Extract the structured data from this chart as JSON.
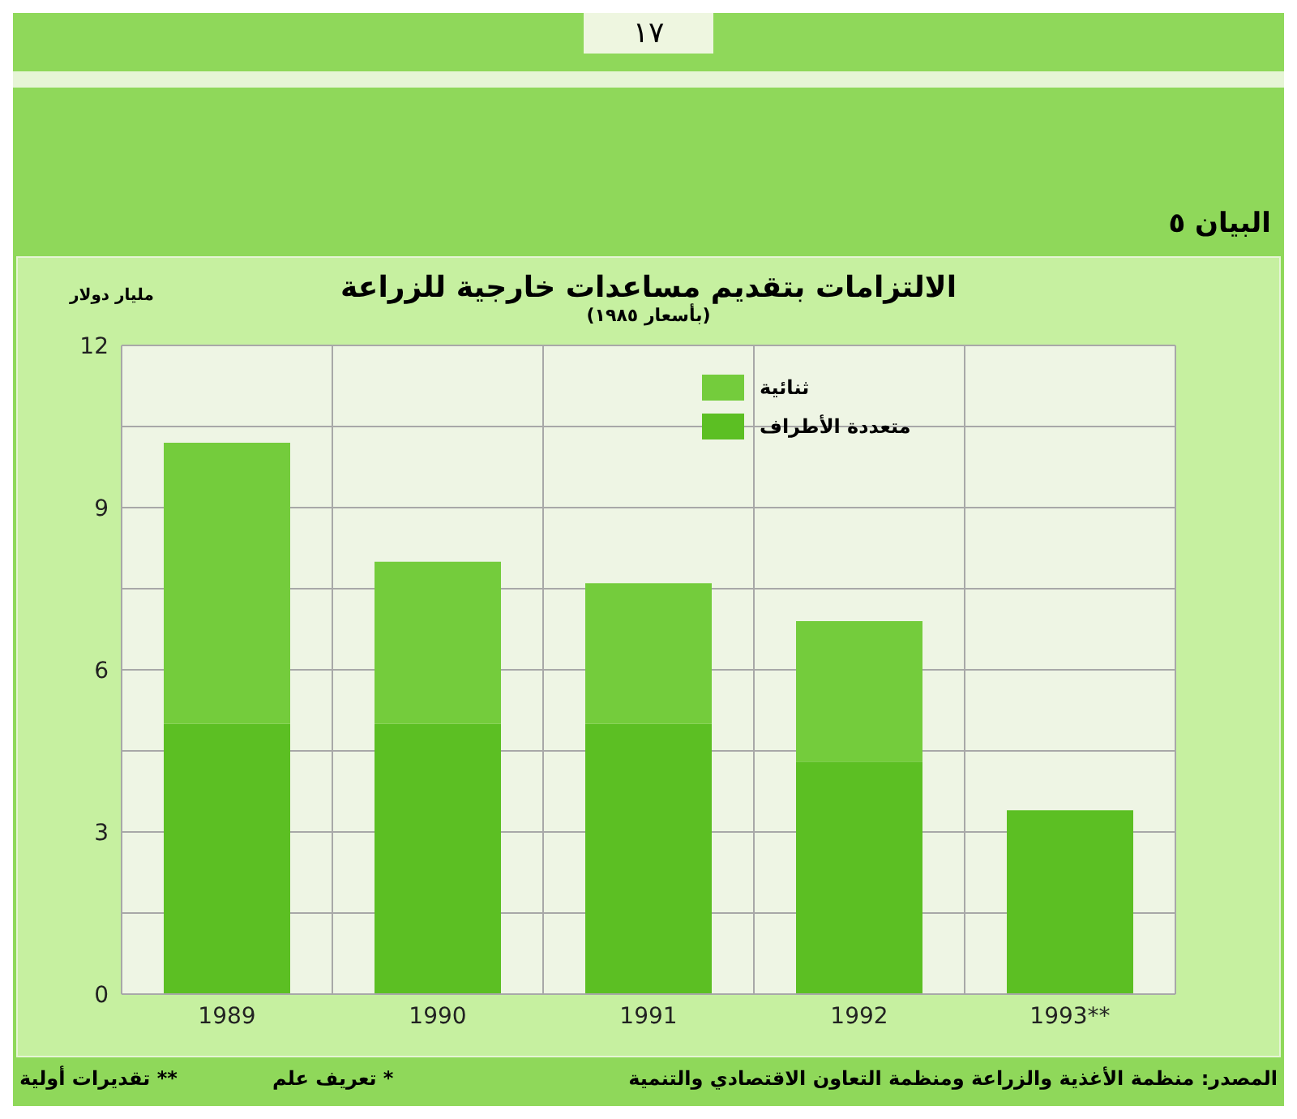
{
  "chart_data": {
    "type": "bar",
    "title": "الالتزامات بتقديم مساعدات خارجية للزراعة",
    "subtitle": "(بأسعار ١٩٨٥)",
    "ylabel": "مليار دولار",
    "categories": [
      "1989",
      "1990",
      "1991",
      "1992",
      "1993**"
    ],
    "series": [
      {
        "name": "متعددة الأطراف",
        "color": "#5cbf23",
        "values": [
          5.0,
          5.0,
          5.0,
          4.3,
          3.4
        ]
      },
      {
        "name": "ثنائية",
        "color": "#74cc3c",
        "values": [
          5.2,
          3.0,
          2.6,
          2.6,
          null
        ]
      }
    ],
    "stacked": true,
    "ylim": [
      0,
      12
    ],
    "yticks": [
      0,
      {
        "value": 1.5,
        "label": null
      },
      3,
      {
        "value": 4.5,
        "label": null
      },
      6,
      {
        "value": 7.5,
        "label": null
      },
      9,
      {
        "value": 10.5,
        "label": null
      },
      12
    ],
    "grid": true,
    "legend": "top right",
    "annotations": [
      "١٧",
      "البيان ٥",
      "المصدر: منظمة الأغذية والزراعة ومنظمة التعاون الاقتصادي والتنمية",
      "* تعريف علم",
      "** تقديرات أولية"
    ]
  }
}
